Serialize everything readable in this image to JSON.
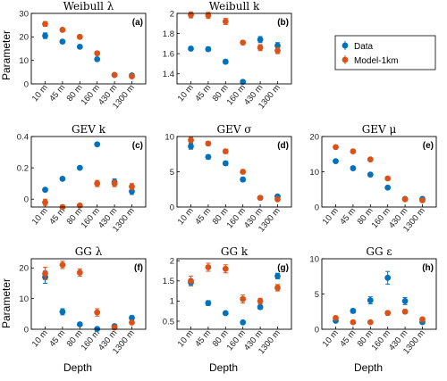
{
  "figure": {
    "ylabel": "Parameter",
    "xlabel": "Depth"
  },
  "legend": {
    "placement": "right, beside top row",
    "entries": [
      {
        "label": "Data",
        "color": "#0072BD"
      },
      {
        "label": "Model-1km",
        "color": "#D95319"
      }
    ]
  },
  "chart_data": [
    {
      "type": "scatter",
      "panel": "(a)",
      "title": "Weibull λ",
      "categories": [
        "10 m",
        "45 m",
        "80 m",
        "160 m",
        "430 m",
        "1300 m"
      ],
      "ylim": [
        0,
        30
      ],
      "yticks": [
        0,
        10,
        20,
        30
      ],
      "series": [
        {
          "name": "Data",
          "values": [
            20.5,
            18,
            15.8,
            10.5,
            3.8,
            3.6
          ],
          "err": [
            1.2,
            0.8,
            0.8,
            0.8,
            0.5,
            0.5
          ]
        },
        {
          "name": "Model-1km",
          "values": [
            25.5,
            23,
            20,
            13,
            3.8,
            3.2
          ],
          "err": [
            1.0,
            0.8,
            0.8,
            0.8,
            0.5,
            0.5
          ]
        }
      ]
    },
    {
      "type": "scatter",
      "panel": "(b)",
      "title": "Weibull k",
      "categories": [
        "10 m",
        "45 m",
        "80 m",
        "160 m",
        "430 m",
        "1300 m"
      ],
      "ylim": [
        1.3,
        2.0
      ],
      "yticks": [
        1.4,
        1.6,
        1.8,
        2.0
      ],
      "series": [
        {
          "name": "Data",
          "values": [
            1.65,
            1.645,
            1.52,
            1.32,
            1.74,
            1.68
          ],
          "err": [
            0.02,
            0.02,
            0.02,
            0.02,
            0.03,
            0.03
          ]
        },
        {
          "name": "Model-1km",
          "values": [
            1.985,
            1.98,
            1.92,
            1.71,
            1.66,
            1.63
          ],
          "err": [
            0.03,
            0.03,
            0.03,
            0.02,
            0.03,
            0.03
          ]
        }
      ]
    },
    {
      "type": "scatter",
      "panel": "(c)",
      "title": "GEV k",
      "categories": [
        "10 m",
        "45 m",
        "80 m",
        "160 m",
        "430 m",
        "1300 m"
      ],
      "ylim": [
        -0.05,
        0.4
      ],
      "yticks": [
        0,
        0.2,
        0.4
      ],
      "series": [
        {
          "name": "Data",
          "values": [
            0.06,
            0.13,
            0.2,
            0.35,
            0.11,
            0.05
          ],
          "err": [
            0.01,
            0.01,
            0.01,
            0.01,
            0.02,
            0.02
          ]
        },
        {
          "name": "Model-1km",
          "values": [
            -0.02,
            -0.05,
            -0.04,
            0.1,
            0.1,
            0.08
          ],
          "err": [
            0.02,
            0.01,
            0.01,
            0.02,
            0.02,
            0.02
          ]
        }
      ]
    },
    {
      "type": "scatter",
      "panel": "(d)",
      "title": "GEV σ",
      "categories": [
        "10 m",
        "45 m",
        "80 m",
        "160 m",
        "430 m",
        "1300 m"
      ],
      "ylim": [
        0,
        10
      ],
      "yticks": [
        0,
        5,
        10
      ],
      "series": [
        {
          "name": "Data",
          "values": [
            8.6,
            7.1,
            6.2,
            3.9,
            1.3,
            1.5
          ],
          "err": [
            0.4,
            0.3,
            0.3,
            0.3,
            0.2,
            0.2
          ]
        },
        {
          "name": "Model-1km",
          "values": [
            9.5,
            9.0,
            7.9,
            5.0,
            1.3,
            1.1
          ],
          "err": [
            0.4,
            0.3,
            0.3,
            0.3,
            0.2,
            0.2
          ]
        }
      ]
    },
    {
      "type": "scatter",
      "panel": "(e)",
      "title": "GEV μ",
      "categories": [
        "10 m",
        "45 m",
        "80 m",
        "160 m",
        "430 m",
        "1300 m"
      ],
      "ylim": [
        0,
        20
      ],
      "yticks": [
        0,
        10,
        20
      ],
      "series": [
        {
          "name": "Data",
          "values": [
            13.0,
            11.0,
            9.2,
            5.5,
            2.3,
            2.3
          ],
          "err": [
            0.5,
            0.4,
            0.4,
            0.3,
            0.2,
            0.2
          ]
        },
        {
          "name": "Model-1km",
          "values": [
            17.0,
            15.8,
            13.5,
            8.1,
            2.2,
            1.9
          ],
          "err": [
            0.5,
            0.4,
            0.4,
            0.3,
            0.2,
            0.2
          ]
        }
      ]
    },
    {
      "type": "scatter",
      "panel": "(f)",
      "title": "GG λ",
      "categories": [
        "10 m",
        "45 m",
        "80 m",
        "160 m",
        "430 m",
        "1300 m"
      ],
      "ylim": [
        0,
        23
      ],
      "yticks": [
        0,
        10,
        20
      ],
      "series": [
        {
          "name": "Data",
          "values": [
            17.0,
            5.7,
            1.6,
            0.1,
            1.0,
            3.7
          ],
          "err": [
            2.0,
            1.0,
            0.5,
            0.1,
            0.3,
            0.7
          ]
        },
        {
          "name": "Model-1km",
          "values": [
            18.2,
            21.0,
            18.5,
            5.5,
            0.6,
            2.2
          ],
          "err": [
            2.0,
            1.2,
            1.2,
            1.2,
            0.3,
            0.5
          ]
        }
      ]
    },
    {
      "type": "scatter",
      "panel": "(g)",
      "title": "GG k",
      "categories": [
        "10 m",
        "45 m",
        "80 m",
        "160 m",
        "430 m",
        "1300 m"
      ],
      "ylim": [
        0.3,
        2.05
      ],
      "yticks": [
        0.5,
        1,
        1.5,
        2
      ],
      "series": [
        {
          "name": "Data",
          "values": [
            1.46,
            0.95,
            0.7,
            0.47,
            0.85,
            1.62
          ],
          "err": [
            0.08,
            0.06,
            0.04,
            0.03,
            0.05,
            0.07
          ]
        },
        {
          "name": "Model-1km",
          "values": [
            1.5,
            1.84,
            1.8,
            1.05,
            1.0,
            1.33
          ],
          "err": [
            0.12,
            0.1,
            0.1,
            0.1,
            0.07,
            0.08
          ]
        }
      ]
    },
    {
      "type": "scatter",
      "panel": "(h)",
      "title": "GG ε",
      "categories": [
        "10 m",
        "45 m",
        "80 m",
        "160 m",
        "430 m",
        "1300 m"
      ],
      "ylim": [
        0,
        10
      ],
      "yticks": [
        0,
        5,
        10
      ],
      "series": [
        {
          "name": "Data",
          "values": [
            1.2,
            2.6,
            4.1,
            7.3,
            4.0,
            1.0
          ],
          "err": [
            0.2,
            0.3,
            0.5,
            0.9,
            0.5,
            0.2
          ]
        },
        {
          "name": "Model-1km",
          "values": [
            1.6,
            1.0,
            1.0,
            2.3,
            2.5,
            1.4
          ],
          "err": [
            0.2,
            0.2,
            0.2,
            0.3,
            0.3,
            0.2
          ]
        }
      ]
    }
  ]
}
